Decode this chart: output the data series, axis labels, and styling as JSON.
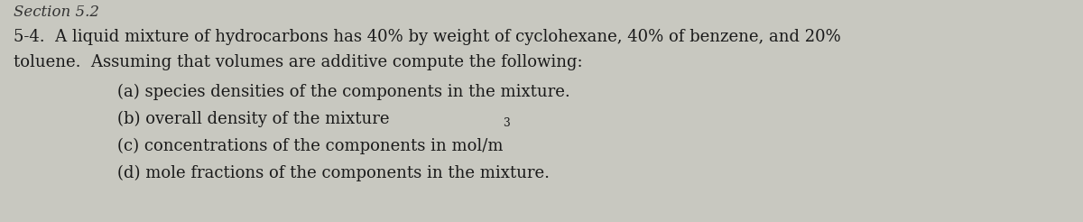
{
  "background_color": "#c8c8c0",
  "header": "Section 5.2",
  "header_fontsize": 12,
  "header_color": "#333333",
  "main_text_line1": "5-4.  A liquid mixture of hydrocarbons has 40% by weight of cyclohexane, 40% of benzene, and 20%",
  "main_text_line2": "toluene.  Assuming that volumes are additive compute the following:",
  "main_fontsize": 13.0,
  "items": [
    "(a) species densities of the components in the mixture.",
    "(b) overall density of the mixture",
    "(c) concentrations of the components in mol/m",
    "(d) mole fractions of the components in the mixture."
  ],
  "items_fontsize": 13.0,
  "text_color": "#1a1a1a",
  "font_family": "DejaVu Serif"
}
